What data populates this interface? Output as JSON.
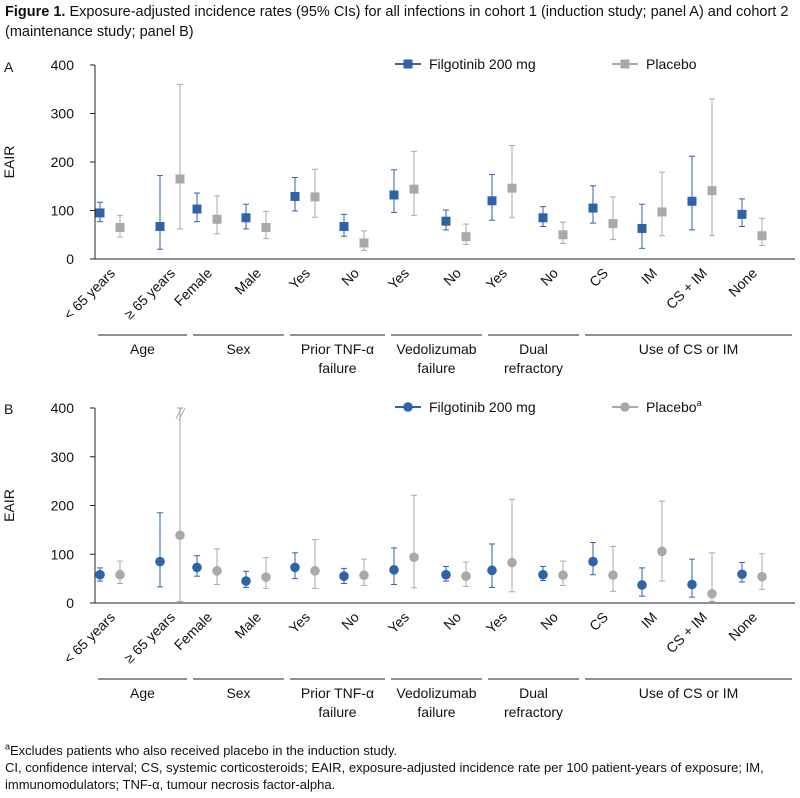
{
  "caption": {
    "label": "Figure 1.",
    "text": " Exposure-adjusted incidence rates (95% CIs) for all infections in cohort 1 (induction study; panel A) and cohort 2 (maintenance study; panel B)"
  },
  "footnotes": {
    "a_marker": "a",
    "a_text": "Excludes patients who also received placebo in the induction study.",
    "abbreviations": "CI, confidence interval; CS, systemic corticosteroids; EAIR, exposure-adjusted incidence rate per 100 patient-years of exposure; IM, immunomodulators; TNF-α, tumour necrosis factor-alpha."
  },
  "colors": {
    "filgotinib": "#2f63a8",
    "placebo": "#a9a9a9"
  },
  "chart_data": [
    {
      "type": "scatter",
      "panel": "A",
      "ylabel": "EAIR",
      "ylim": [
        0,
        400
      ],
      "yticks": [
        0,
        100,
        200,
        300,
        400
      ],
      "marker": "square",
      "axis_break": false,
      "categories": [
        "< 65 years",
        "≥ 65 years",
        "Female",
        "Male",
        "Yes",
        "No",
        "Yes",
        "No",
        "Yes",
        "No",
        "CS",
        "IM",
        "CS + IM",
        "None"
      ],
      "groups": [
        {
          "label": [
            "Age"
          ],
          "span": [
            0,
            1
          ]
        },
        {
          "label": [
            "Sex"
          ],
          "span": [
            2,
            3
          ]
        },
        {
          "label": [
            "Prior TNF-α",
            "failure"
          ],
          "span": [
            4,
            5
          ]
        },
        {
          "label": [
            "Vedolizumab",
            "failure"
          ],
          "span": [
            6,
            7
          ]
        },
        {
          "label": [
            "Dual",
            "refractory"
          ],
          "span": [
            8,
            9
          ]
        },
        {
          "label": [
            "Use of CS or IM"
          ],
          "span": [
            10,
            13
          ]
        }
      ],
      "series": [
        {
          "name": "Filgotinib 200 mg",
          "sup": "",
          "values": [
            95,
            67,
            103,
            85,
            129,
            67,
            132,
            78,
            120,
            85,
            105,
            63,
            119,
            92
          ],
          "lower": [
            77,
            20,
            77,
            62,
            99,
            47,
            96,
            60,
            80,
            67,
            74,
            22,
            60,
            67
          ],
          "upper": [
            117,
            172,
            136,
            113,
            168,
            92,
            184,
            101,
            174,
            108,
            151,
            113,
            212,
            124
          ]
        },
        {
          "name": "Placebo",
          "sup": "",
          "values": [
            65,
            165,
            82,
            65,
            128,
            33,
            144,
            46,
            146,
            50,
            73,
            97,
            141,
            48
          ],
          "lower": [
            45,
            62,
            52,
            42,
            86,
            18,
            90,
            30,
            86,
            32,
            40,
            48,
            48,
            28
          ],
          "upper": [
            90,
            360,
            130,
            98,
            185,
            58,
            222,
            72,
            234,
            76,
            128,
            179,
            330,
            84
          ]
        }
      ]
    },
    {
      "type": "scatter",
      "panel": "B",
      "ylabel": "EAIR",
      "ylim": [
        0,
        400
      ],
      "yticks": [
        0,
        100,
        200,
        300,
        400
      ],
      "marker": "circle",
      "axis_break": true,
      "categories": [
        "< 65 years",
        "≥ 65 years",
        "Female",
        "Male",
        "Yes",
        "No",
        "Yes",
        "No",
        "Yes",
        "No",
        "CS",
        "IM",
        "CS + IM",
        "None"
      ],
      "groups": [
        {
          "label": [
            "Age"
          ],
          "span": [
            0,
            1
          ]
        },
        {
          "label": [
            "Sex"
          ],
          "span": [
            2,
            3
          ]
        },
        {
          "label": [
            "Prior TNF-α",
            "failure"
          ],
          "span": [
            4,
            5
          ]
        },
        {
          "label": [
            "Vedolizumab",
            "failure"
          ],
          "span": [
            6,
            7
          ]
        },
        {
          "label": [
            "Dual",
            "refractory"
          ],
          "span": [
            8,
            9
          ]
        },
        {
          "label": [
            "Use of CS or IM"
          ],
          "span": [
            10,
            13
          ]
        }
      ],
      "series": [
        {
          "name": "Filgotinib 200 mg",
          "sup": "",
          "values": [
            58,
            85,
            73,
            45,
            73,
            55,
            68,
            58,
            67,
            58,
            85,
            37,
            38,
            59
          ],
          "lower": [
            45,
            33,
            55,
            32,
            50,
            40,
            38,
            45,
            32,
            46,
            58,
            14,
            12,
            43
          ],
          "upper": [
            72,
            185,
            97,
            65,
            103,
            71,
            113,
            75,
            121,
            75,
            124,
            72,
            90,
            83
          ]
        },
        {
          "name": "Placebo",
          "sup": "a",
          "values": [
            58,
            139,
            66,
            53,
            66,
            57,
            94,
            55,
            83,
            57,
            57,
            106,
            19,
            54
          ],
          "lower": [
            40,
            3,
            38,
            30,
            30,
            36,
            31,
            34,
            23,
            36,
            24,
            45,
            3,
            28
          ],
          "upper": [
            86,
            410,
            111,
            93,
            130,
            90,
            221,
            84,
            212,
            86,
            116,
            209,
            103,
            101
          ]
        }
      ]
    }
  ]
}
